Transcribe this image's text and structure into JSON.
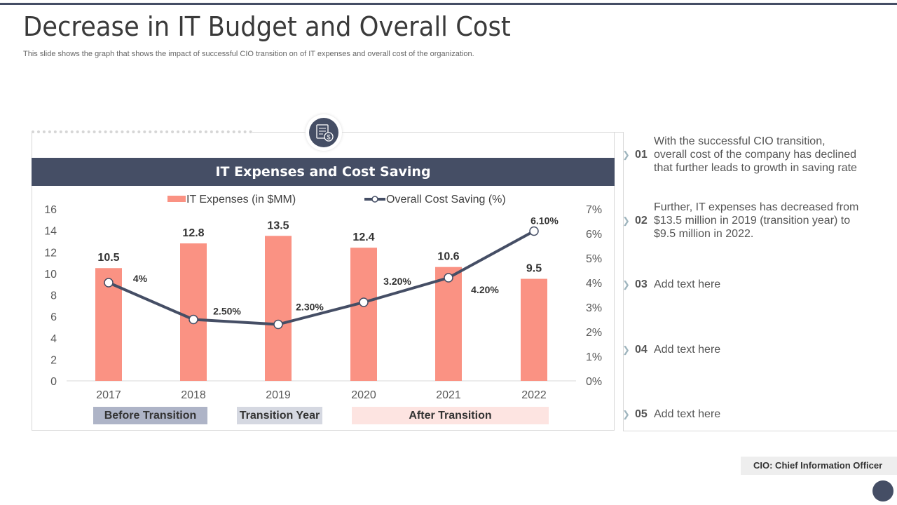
{
  "title": "Decrease in IT Budget and Overall Cost",
  "subtitle": "This slide shows the graph that shows the impact of successful CIO transition on of IT  expenses and overall cost of the organization.",
  "chart_data": {
    "type": "bar+line",
    "title": "IT Expenses and Cost Saving",
    "categories": [
      "2017",
      "2018",
      "2019",
      "2020",
      "2021",
      "2022"
    ],
    "series": [
      {
        "name": "IT Expenses (in $MM)",
        "type": "bar",
        "axis": "left",
        "values": [
          10.5,
          12.8,
          13.5,
          12.4,
          10.6,
          9.5
        ],
        "labels": [
          "10.5",
          "12.8",
          "13.5",
          "12.4",
          "10.6",
          "9.5"
        ],
        "color": "#fa9283"
      },
      {
        "name": "Overall Cost Saving (%)",
        "type": "line",
        "axis": "right",
        "values": [
          4,
          2.5,
          2.3,
          3.2,
          4.2,
          6.1
        ],
        "labels": [
          "4%",
          "2.50%",
          "2.30%",
          "3.20%",
          "4.20%",
          "6.10%"
        ],
        "color": "#454e65"
      }
    ],
    "left_axis": {
      "ylim": [
        0,
        16
      ],
      "ticks": [
        "0",
        "2",
        "4",
        "6",
        "8",
        "10",
        "12",
        "14",
        "16"
      ]
    },
    "right_axis": {
      "ylim": [
        0,
        7
      ],
      "ticks": [
        "0%",
        "1%",
        "2%",
        "3%",
        "4%",
        "5%",
        "6%",
        "7%"
      ]
    },
    "legend": "top",
    "grid": false
  },
  "phases": [
    {
      "label": "Before Transition",
      "color": "#aeb4c7"
    },
    {
      "label": "Transition Year",
      "color": "#d5d8e1"
    },
    {
      "label": "After Transition",
      "color": "#fde4e1"
    }
  ],
  "notes": [
    {
      "num": "01",
      "text": "With the successful CIO transition, overall cost of the company has declined that further  leads to growth in saving rate"
    },
    {
      "num": "02",
      "text": "Further, IT expenses has decreased from $13.5 million in 2019 (transition year) to $9.5 million in 2022."
    },
    {
      "num": "03",
      "text": "Add text here"
    },
    {
      "num": "04",
      "text": "Add text here"
    },
    {
      "num": "05",
      "text": "Add text here"
    }
  ],
  "footer": "CIO: Chief Information Officer"
}
